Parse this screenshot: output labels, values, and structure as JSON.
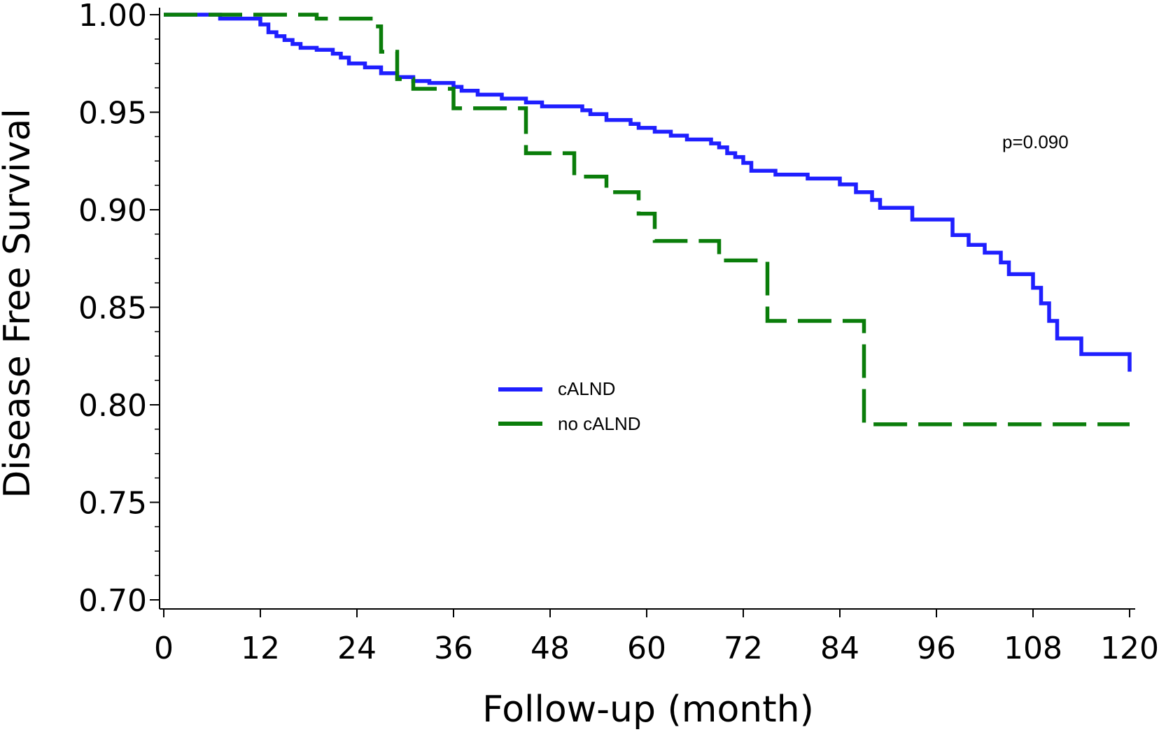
{
  "chart_data": {
    "type": "line",
    "title": "",
    "xlabel": "Follow-up (month)",
    "ylabel": "Disease Free Survival",
    "xlim": [
      0,
      120
    ],
    "ylim": [
      0.7,
      1.0
    ],
    "x_ticks": [
      0,
      12,
      24,
      36,
      48,
      60,
      72,
      84,
      96,
      108,
      120
    ],
    "x_tick_labels": [
      "0",
      "12",
      "24",
      "36",
      "48",
      "60",
      "72",
      "84",
      "96",
      "108",
      "120"
    ],
    "y_ticks": [
      0.7,
      0.75,
      0.8,
      0.85,
      0.9,
      0.95,
      1.0
    ],
    "y_tick_labels": [
      "0.70",
      "0.75",
      "0.80",
      "0.85",
      "0.90",
      "0.95",
      "1.00"
    ],
    "y_minor_step": 0.0125,
    "grid": false,
    "legend_position": "center",
    "annotation": "p=0.090",
    "series": [
      {
        "name": "cALND",
        "color": "#1f1fff",
        "style": "solid",
        "x": [
          0,
          7,
          12,
          13,
          14,
          15,
          16,
          17,
          19,
          21,
          22,
          23,
          25,
          27,
          29,
          31,
          33,
          36,
          37,
          39,
          42,
          45,
          47,
          52,
          53,
          55,
          58,
          59,
          61,
          63,
          65,
          68,
          69,
          70,
          71,
          72,
          73,
          76,
          80,
          84,
          86,
          88,
          89,
          93,
          98,
          100,
          102,
          104,
          105,
          108,
          109,
          110,
          111,
          114,
          120
        ],
        "y": [
          1.0,
          0.998,
          0.995,
          0.991,
          0.989,
          0.987,
          0.985,
          0.983,
          0.982,
          0.98,
          0.978,
          0.975,
          0.973,
          0.97,
          0.968,
          0.966,
          0.965,
          0.963,
          0.961,
          0.959,
          0.957,
          0.955,
          0.953,
          0.951,
          0.949,
          0.946,
          0.944,
          0.942,
          0.94,
          0.938,
          0.936,
          0.934,
          0.932,
          0.929,
          0.927,
          0.924,
          0.92,
          0.918,
          0.916,
          0.913,
          0.909,
          0.905,
          0.901,
          0.895,
          0.887,
          0.882,
          0.878,
          0.873,
          0.867,
          0.86,
          0.852,
          0.843,
          0.834,
          0.826,
          0.817
        ]
      },
      {
        "name": "no cALND",
        "color": "#0a7d0a",
        "style": "dashed",
        "x": [
          0,
          19,
          26,
          27,
          29,
          31,
          36,
          45,
          51,
          55,
          59,
          61,
          69,
          75,
          87,
          120
        ],
        "y": [
          1.0,
          0.998,
          0.994,
          0.981,
          0.967,
          0.962,
          0.952,
          0.929,
          0.917,
          0.909,
          0.898,
          0.884,
          0.874,
          0.843,
          0.79,
          0.79
        ]
      }
    ]
  }
}
